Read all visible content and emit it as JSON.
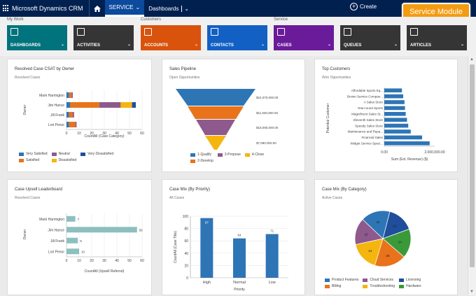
{
  "topbar": {
    "app_title": "Microsoft Dynamics CRM",
    "service_label": "SERVICE",
    "dashboards_label": "Dashboards",
    "create_label": "Create"
  },
  "badge": "Service Module",
  "groups": {
    "my_work": "My Work",
    "customers": "Customers",
    "service": "Service"
  },
  "tiles": [
    {
      "label": "DASHBOARDS",
      "color": "#00737d"
    },
    {
      "label": "ACTIVITIES",
      "color": "#353535"
    },
    {
      "label": "ACCOUNTS",
      "color": "#d9530c"
    },
    {
      "label": "CONTACTS",
      "color": "#1360c4"
    },
    {
      "label": "CASES",
      "color": "#6a1b9a"
    },
    {
      "label": "QUEUES",
      "color": "#353535"
    },
    {
      "label": "ARTICLES",
      "color": "#353535"
    }
  ],
  "chart_data": [
    {
      "type": "bar",
      "title": "Resolved Case CSAT by Owner",
      "subtitle": "Resolved Cases",
      "ylabel": "Owner",
      "xlabel": "CountAll (Case Category)",
      "categories": [
        "Mark Harrington",
        "Jim Hance",
        "Jill Frank",
        "Lori Penor"
      ],
      "xlim": [
        0,
        60
      ],
      "ticks": [
        0,
        10,
        20,
        30,
        40,
        50,
        60
      ],
      "series": [
        {
          "name": "Very Satisfied",
          "color": "#2e75b6",
          "values": [
            2,
            3,
            2,
            2
          ]
        },
        {
          "name": "Satisfied",
          "color": "#e8731b",
          "values": [
            2,
            23,
            3,
            5
          ]
        },
        {
          "name": "Neutral",
          "color": "#8e5a8e",
          "values": [
            1,
            17,
            1,
            1
          ]
        },
        {
          "name": "Dissatisfied",
          "color": "#f5b50f",
          "values": [
            0,
            9,
            0,
            0
          ]
        },
        {
          "name": "Very Dissatisfied",
          "color": "#1f4e9c",
          "values": [
            0,
            3,
            0,
            0
          ]
        }
      ]
    },
    {
      "type": "funnel",
      "title": "Sales Pipeline",
      "subtitle": "Open Opportunities",
      "stages": [
        {
          "name": "1-Qualify",
          "color": "#2e75b6",
          "label": "$24,070,000.00"
        },
        {
          "name": "2-Develop",
          "color": "#e8731b",
          "label": "$11,930,000.00"
        },
        {
          "name": "3-Propose",
          "color": "#8e5a8e",
          "label": "$18,090,000.00"
        },
        {
          "name": "4-Close",
          "color": "#f5b50f",
          "label": "$7,090,000.00"
        }
      ]
    },
    {
      "type": "bar",
      "title": "Top Customers",
      "subtitle": "Won Opportunities",
      "ylabel": "Potential Customer",
      "xlabel": "Sum (Est. Revenue) ($)",
      "categories": [
        "Affordable Sports Eq...",
        "Brown Service Compan...",
        "A Sales Store",
        "Year-round Sports",
        "Magnificent Sales St...",
        "Eleventh Sales Store",
        "Speedy Sales Store",
        "Maintenance and Repa...",
        "Financial Sales",
        "Widget Service Speci..."
      ],
      "values": [
        700000,
        750000,
        800000,
        820000,
        850000,
        900000,
        950000,
        1050000,
        1500000,
        1800000
      ],
      "xlim": [
        0,
        2000000
      ],
      "tick_labels": [
        "0.00",
        "2,000,000.00"
      ],
      "color": "#2e75b6"
    },
    {
      "type": "bar",
      "title": "Case Upsell Leaderboard",
      "subtitle": "Resolved Cases",
      "ylabel": "Owner",
      "xlabel": "CountAll (Upsell Referral)",
      "categories": [
        "Mark Harrington",
        "Jim Hance",
        "Jill Frank",
        "Lori Penor"
      ],
      "values": [
        7,
        56,
        9,
        10
      ],
      "xlim": [
        0,
        60
      ],
      "ticks": [
        0,
        10,
        20,
        30,
        40,
        50,
        60
      ],
      "color": "#8dbfbf"
    },
    {
      "type": "bar",
      "title": "Case Mix (By Priority)",
      "subtitle": "All Cases",
      "ylabel": "CountAll (Case Title)",
      "xlabel": "Priority",
      "categories": [
        "High",
        "Normal",
        "Low"
      ],
      "values": [
        97,
        64,
        71
      ],
      "ylim": [
        0,
        100
      ],
      "ticks": [
        0,
        20,
        40,
        60,
        80,
        100
      ],
      "color": "#2e75b6"
    },
    {
      "type": "pie",
      "title": "Case Mix (By Category)",
      "subtitle": "Active Cases",
      "slices": [
        {
          "name": "Product Features",
          "value": 24,
          "color": "#2e75b6"
        },
        {
          "name": "Billing",
          "value": 26,
          "color": "#e8731b"
        },
        {
          "name": "Cloud Services",
          "value": 22,
          "color": "#8e5a8e"
        },
        {
          "name": "Troubleshooting",
          "value": 24,
          "color": "#f5b50f"
        },
        {
          "name": "Licensing",
          "value": 22,
          "color": "#1f4e9c"
        },
        {
          "name": "Hardware",
          "value": 24,
          "color": "#3a9a3a"
        }
      ]
    }
  ]
}
